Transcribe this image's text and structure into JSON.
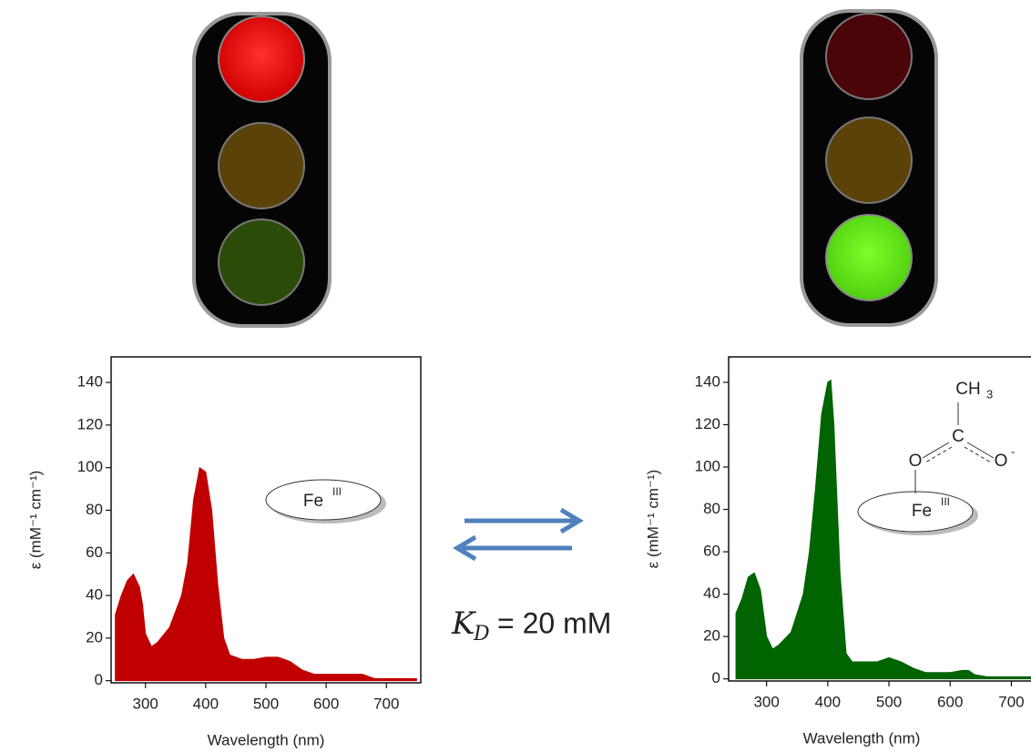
{
  "chart_data": [
    {
      "type": "area",
      "xlabel": "Wavelength (nm)",
      "ylabel": "ε (mM⁻¹ cm⁻¹)",
      "color": "#c00000",
      "x": [
        250,
        260,
        270,
        280,
        290,
        295,
        300,
        310,
        320,
        340,
        360,
        370,
        380,
        390,
        400,
        410,
        420,
        430,
        440,
        460,
        480,
        500,
        520,
        540,
        560,
        580,
        600,
        620,
        640,
        660,
        680,
        700,
        750
      ],
      "values": [
        31,
        40,
        47,
        50,
        44,
        36,
        22,
        16,
        18,
        25,
        40,
        55,
        85,
        100,
        98,
        80,
        45,
        20,
        12,
        10,
        10,
        11,
        11,
        9,
        5,
        3,
        3,
        3,
        3,
        3,
        1,
        1,
        1
      ],
      "xlim": [
        243,
        757
      ],
      "ylim": [
        -1,
        152
      ],
      "xticks": [
        300,
        400,
        500,
        600,
        700
      ],
      "yticks": [
        0,
        20,
        40,
        60,
        80,
        100,
        120,
        140
      ],
      "annotations": {
        "metal": "Fe",
        "oxidation": "III"
      }
    },
    {
      "type": "area",
      "xlabel": "Wavelength (nm)",
      "ylabel": "ε (mM⁻¹ cm⁻¹)",
      "color": "#006400",
      "x": [
        250,
        260,
        270,
        280,
        290,
        300,
        310,
        320,
        340,
        360,
        370,
        380,
        390,
        400,
        405,
        410,
        420,
        430,
        440,
        460,
        480,
        500,
        520,
        540,
        560,
        580,
        600,
        620,
        630,
        640,
        660,
        700,
        750
      ],
      "values": [
        31,
        38,
        48,
        50,
        42,
        20,
        14,
        16,
        22,
        40,
        60,
        90,
        125,
        140,
        141,
        120,
        50,
        12,
        8,
        8,
        8,
        10,
        8,
        5,
        3,
        3,
        3,
        4,
        4,
        2,
        1,
        1,
        1
      ],
      "xlim": [
        238,
        744
      ],
      "ylim": [
        -1,
        152
      ],
      "xticks": [
        300,
        400,
        500,
        600,
        700
      ],
      "yticks": [
        0,
        20,
        40,
        60,
        80,
        100,
        120,
        140
      ],
      "annotations": {
        "metal": "Fe",
        "oxidation": "III",
        "methyl": "CH",
        "methyl_sub": "3",
        "carbon": "C",
        "oxygen_bound": "O",
        "oxygen_free": "O",
        "charge": "-"
      }
    }
  ],
  "equilibrium": {
    "symbol": "K",
    "subscript": "D",
    "text": "= 20 mM"
  }
}
